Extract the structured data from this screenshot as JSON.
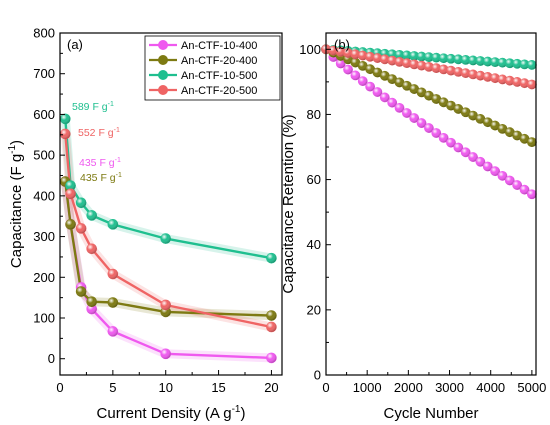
{
  "colors": {
    "An-CTF-10-400": "#ef59ef",
    "An-CTF-20-400": "#7d7a12",
    "An-CTF-10-500": "#1fbf8f",
    "An-CTF-20-500": "#ef6464"
  },
  "chart_data": [
    {
      "type": "line",
      "panel_label": "(a)",
      "xlabel": "Current Density (A g",
      "xlabel_sup": "-1",
      "xlabel_tail": ")",
      "ylabel": "Capacitance (F g",
      "ylabel_sup": "-1",
      "ylabel_tail": ")",
      "xlim": [
        0,
        21
      ],
      "ylim": [
        -40,
        800
      ],
      "xticks": [
        0,
        5,
        10,
        15,
        20
      ],
      "yticks": [
        0,
        100,
        200,
        300,
        400,
        500,
        600,
        700,
        800
      ],
      "legend_position": "top-right",
      "series": [
        {
          "name": "An-CTF-10-400",
          "x": [
            0.5,
            1,
            2,
            3,
            5,
            10,
            20
          ],
          "values": [
            435,
            330,
            175,
            122,
            67,
            12,
            2
          ]
        },
        {
          "name": "An-CTF-20-400",
          "x": [
            0.5,
            1,
            2,
            3,
            5,
            10,
            20
          ],
          "values": [
            435,
            330,
            165,
            140,
            138,
            115,
            106
          ]
        },
        {
          "name": "An-CTF-10-500",
          "x": [
            0.5,
            1,
            2,
            3,
            5,
            10,
            20
          ],
          "values": [
            589,
            425,
            383,
            352,
            330,
            295,
            247
          ]
        },
        {
          "name": "An-CTF-20-500",
          "x": [
            0.5,
            1,
            2,
            3,
            5,
            10,
            20
          ],
          "values": [
            552,
            405,
            320,
            270,
            208,
            132,
            78
          ]
        }
      ],
      "annotations": [
        {
          "series": "An-CTF-10-500",
          "value": "589",
          "unit": " F g",
          "sup": "-1"
        },
        {
          "series": "An-CTF-20-500",
          "value": "552",
          "unit": " F g",
          "sup": "-1"
        },
        {
          "series": "An-CTF-10-400",
          "value": "435",
          "unit": " F g",
          "sup": "-1"
        },
        {
          "series": "An-CTF-20-400",
          "value": "435",
          "unit": " F g",
          "sup": "-1"
        }
      ]
    },
    {
      "type": "line",
      "panel_label": "(b)",
      "xlabel": "Cycle Number",
      "ylabel": "Capacitance Retention (%)",
      "xlim": [
        0,
        5100
      ],
      "ylim": [
        0,
        105
      ],
      "xticks": [
        0,
        1000,
        2000,
        3000,
        4000,
        5000
      ],
      "yticks": [
        0,
        20,
        40,
        60,
        80,
        100
      ],
      "series": [
        {
          "name": "An-CTF-10-400",
          "x": [
            0,
            5000
          ],
          "values": [
            100,
            55.5
          ],
          "shape": "accelerating"
        },
        {
          "name": "An-CTF-20-400",
          "x": [
            0,
            5000
          ],
          "values": [
            100,
            71.5
          ],
          "shape": "linear"
        },
        {
          "name": "An-CTF-10-500",
          "x": [
            0,
            5000
          ],
          "values": [
            100,
            95.2
          ],
          "shape": "linear"
        },
        {
          "name": "An-CTF-20-500",
          "x": [
            0,
            5000
          ],
          "values": [
            100,
            89.2
          ],
          "shape": "linear"
        }
      ]
    }
  ]
}
